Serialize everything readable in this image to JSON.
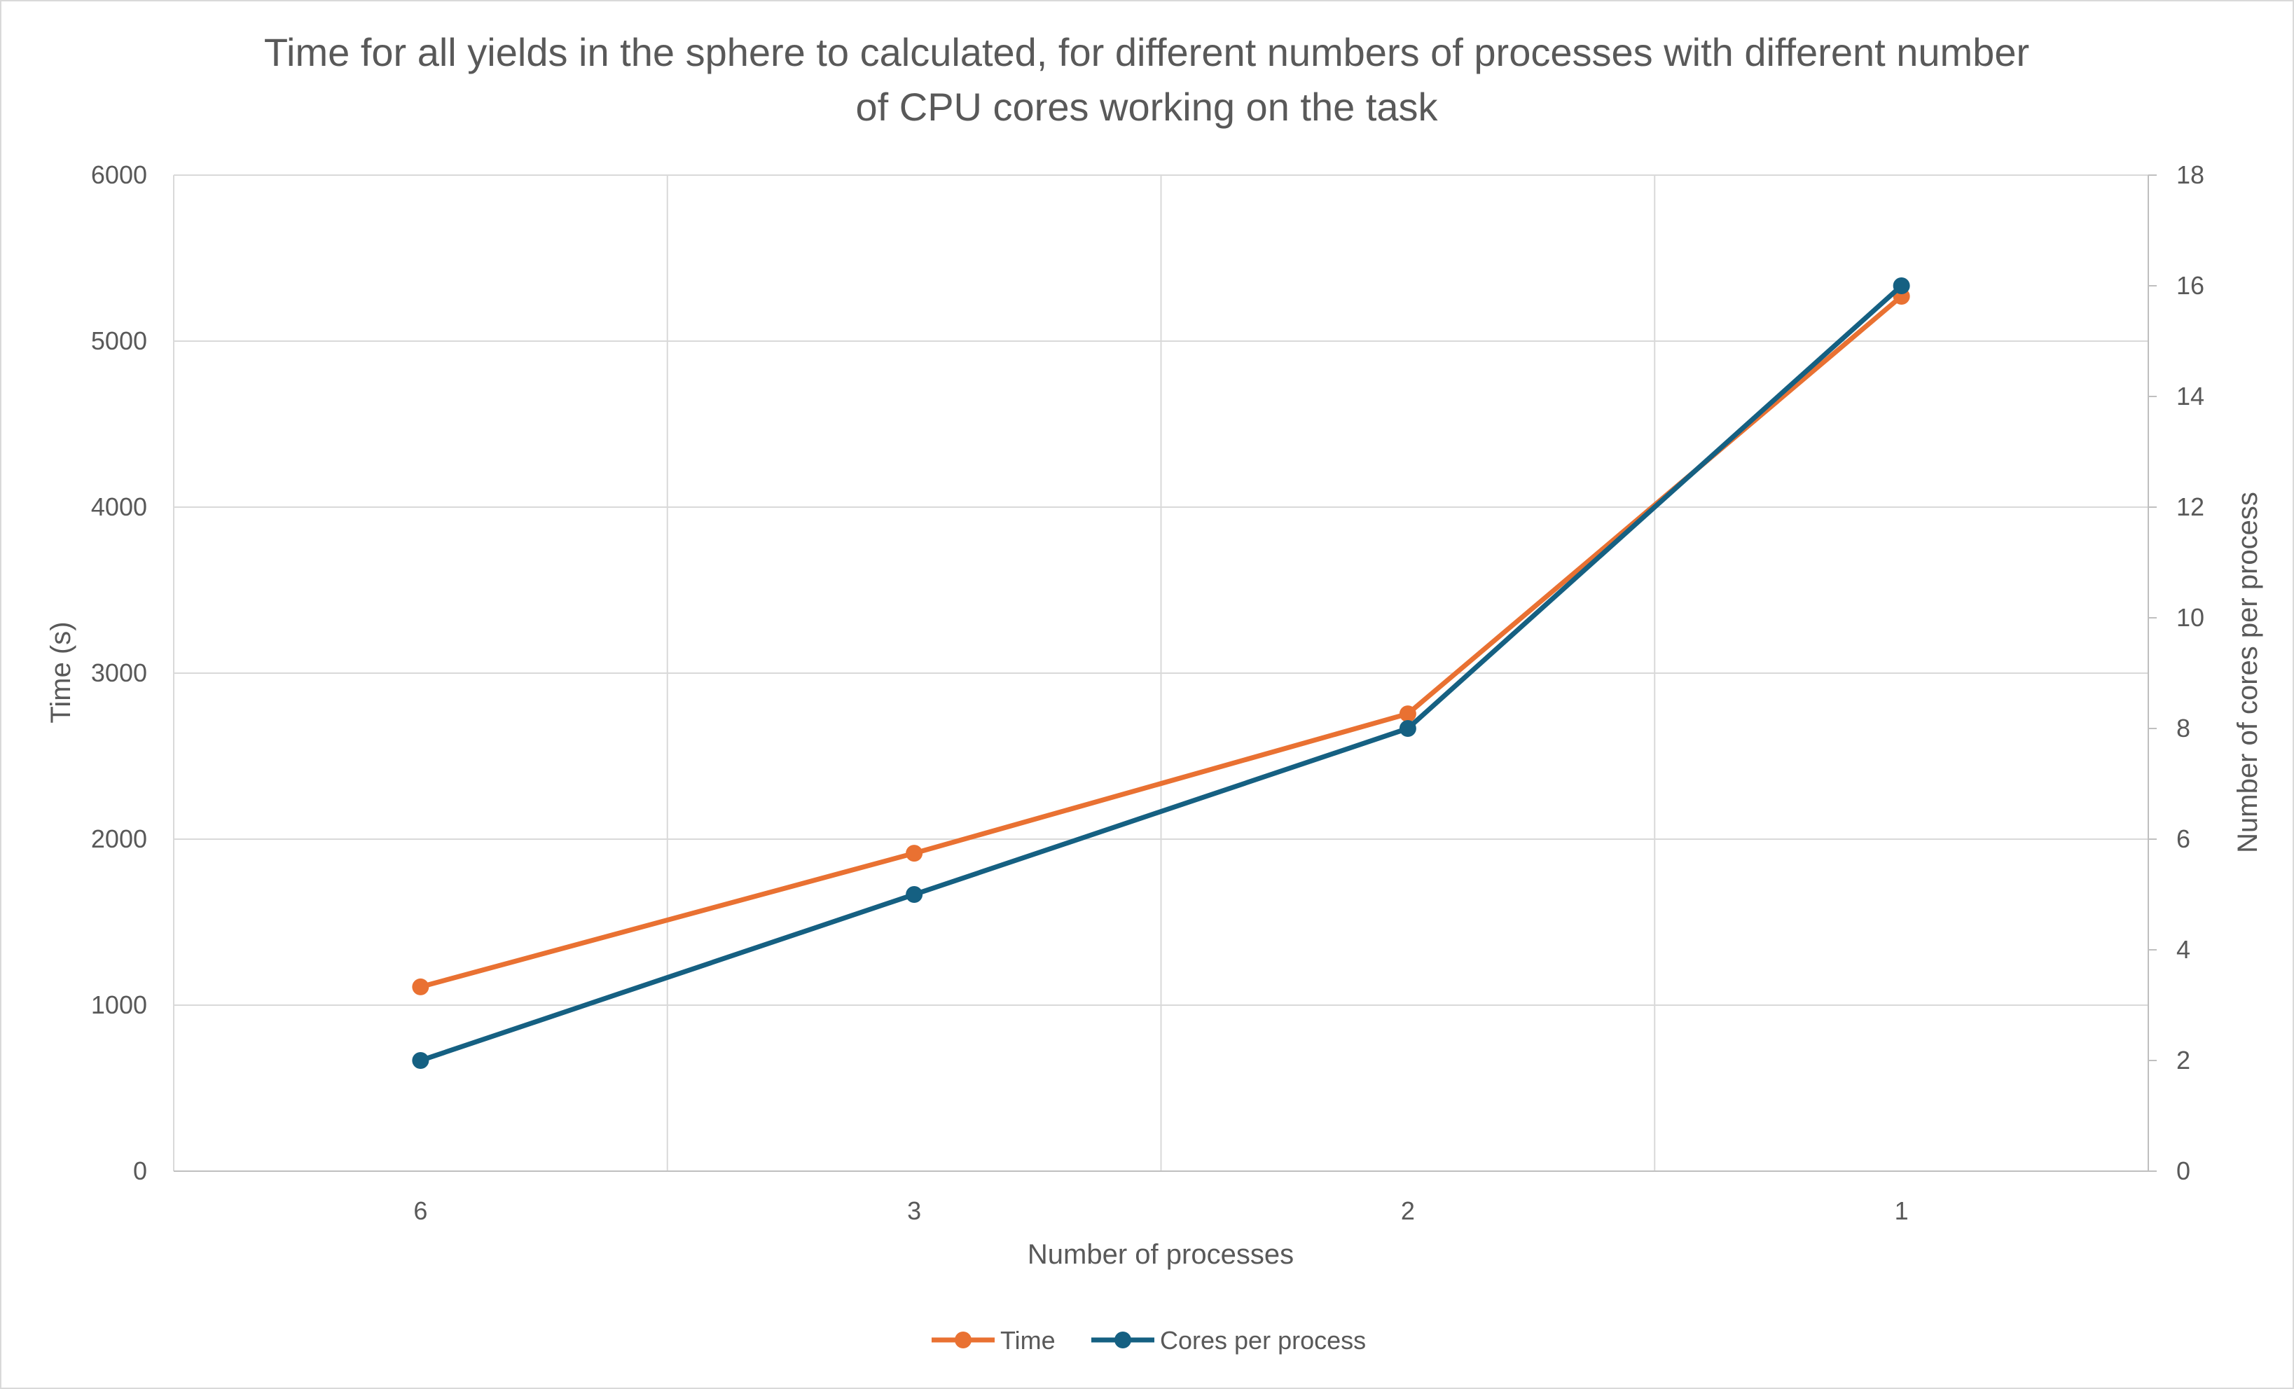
{
  "chart_data": {
    "type": "line",
    "title_lines": [
      "Time for all yields in the sphere to calculated, for different numbers of processes with different number",
      "of CPU cores working on the task"
    ],
    "xlabel": "Number of processes",
    "ylabel": "Time (s)",
    "y2label": "Number of cores per process",
    "categories": [
      "6",
      "3",
      "2",
      "1"
    ],
    "ylim": [
      0,
      6000
    ],
    "yticks": [
      "0",
      "1000",
      "2000",
      "3000",
      "4000",
      "5000",
      "6000"
    ],
    "y2lim": [
      0,
      18
    ],
    "y2ticks": [
      "0",
      "2",
      "4",
      "6",
      "8",
      "10",
      "12",
      "14",
      "16",
      "18"
    ],
    "grid": true,
    "legend_position": "bottom",
    "series": [
      {
        "name": "Time",
        "axis": "left",
        "color": "#e97132",
        "values": [
          1110,
          1915,
          2755,
          5270
        ]
      },
      {
        "name": "Cores per process",
        "axis": "right",
        "color": "#156082",
        "values": [
          2,
          5,
          8,
          16
        ]
      }
    ]
  }
}
